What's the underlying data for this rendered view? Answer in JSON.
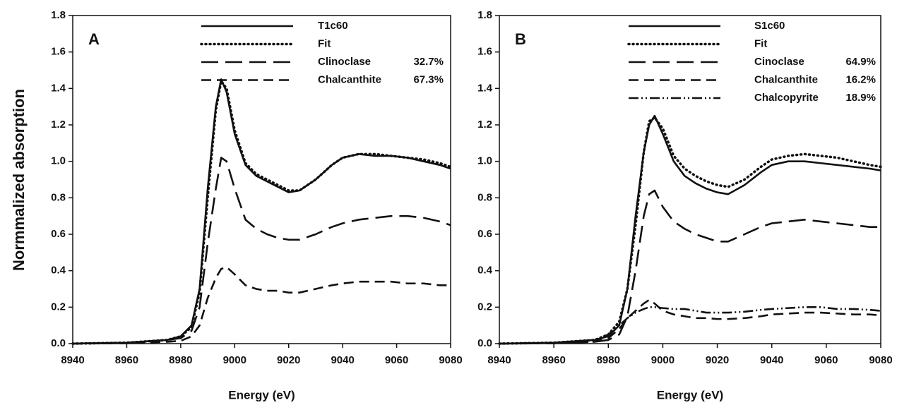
{
  "chart_data": [
    {
      "type": "line",
      "panel_label": "A",
      "xlabel": "Energy (eV)",
      "ylabel": "Normmalized absorption",
      "x": [
        8940,
        8960,
        8975,
        8980,
        8984,
        8987,
        8990,
        8993,
        8995,
        8997,
        9000,
        9004,
        9008,
        9012,
        9016,
        9020,
        9024,
        9030,
        9036,
        9040,
        9046,
        9052,
        9058,
        9064,
        9070,
        9076,
        9080
      ],
      "xlim": [
        8940,
        9080
      ],
      "xticks": [
        8940,
        8960,
        8980,
        9000,
        9020,
        9040,
        9060,
        9080
      ],
      "ylim": [
        0,
        1.8
      ],
      "yticks": [
        {
          "value": 0,
          "label": "0.0"
        },
        0.2,
        0.4,
        0.6,
        0.8,
        {
          "value": 1,
          "label": "1.0"
        },
        1.2,
        1.4,
        1.6,
        1.8
      ],
      "series": [
        {
          "name": "T1c60",
          "color": "#111111",
          "dash": "solid",
          "values": [
            0,
            0.005,
            0.02,
            0.04,
            0.1,
            0.3,
            0.85,
            1.3,
            1.45,
            1.38,
            1.15,
            0.98,
            0.92,
            0.89,
            0.86,
            0.83,
            0.84,
            0.9,
            0.98,
            1.02,
            1.04,
            1.03,
            1.03,
            1.02,
            1.0,
            0.98,
            0.96
          ]
        },
        {
          "name": "Fit",
          "color": "#111111",
          "dash": "dotted",
          "values": [
            0,
            0.005,
            0.02,
            0.04,
            0.09,
            0.28,
            0.8,
            1.28,
            1.44,
            1.4,
            1.17,
            0.99,
            0.93,
            0.9,
            0.87,
            0.84,
            0.84,
            0.9,
            0.98,
            1.02,
            1.04,
            1.04,
            1.03,
            1.02,
            1.01,
            0.99,
            0.97
          ]
        },
        {
          "name": "Clinoclase",
          "percent_label": "32.7%",
          "color": "#111111",
          "dash": "longdash",
          "values": [
            0,
            0.005,
            0.02,
            0.03,
            0.07,
            0.2,
            0.55,
            0.85,
            1.02,
            1.0,
            0.85,
            0.68,
            0.63,
            0.6,
            0.58,
            0.57,
            0.57,
            0.6,
            0.64,
            0.66,
            0.68,
            0.69,
            0.7,
            0.7,
            0.69,
            0.67,
            0.65
          ]
        },
        {
          "name": "Chalcanthite",
          "percent_label": "67.3%",
          "color": "#111111",
          "dash": "dash",
          "values": [
            0,
            0.002,
            0.01,
            0.015,
            0.04,
            0.1,
            0.25,
            0.36,
            0.41,
            0.42,
            0.38,
            0.32,
            0.3,
            0.29,
            0.29,
            0.28,
            0.28,
            0.3,
            0.32,
            0.33,
            0.34,
            0.34,
            0.34,
            0.33,
            0.33,
            0.32,
            0.32
          ]
        }
      ]
    },
    {
      "type": "line",
      "panel_label": "B",
      "xlabel": "Energy (eV)",
      "x": [
        8940,
        8960,
        8975,
        8980,
        8984,
        8987,
        8990,
        8993,
        8995,
        8997,
        9000,
        9004,
        9008,
        9012,
        9016,
        9020,
        9024,
        9030,
        9036,
        9040,
        9046,
        9052,
        9058,
        9064,
        9070,
        9076,
        9080
      ],
      "xlim": [
        8940,
        9080
      ],
      "xticks": [
        8940,
        8960,
        8980,
        9000,
        9020,
        9040,
        9060,
        9080
      ],
      "ylim": [
        0,
        1.8
      ],
      "yticks": [
        {
          "value": 0,
          "label": "0.0"
        },
        0.2,
        0.4,
        0.6,
        0.8,
        {
          "value": 1,
          "label": "1.0"
        },
        1.2,
        1.4,
        1.6,
        1.8
      ],
      "series": [
        {
          "name": "S1c60",
          "color": "#111111",
          "dash": "solid",
          "values": [
            0,
            0.005,
            0.02,
            0.04,
            0.1,
            0.3,
            0.7,
            1.05,
            1.2,
            1.25,
            1.15,
            1.0,
            0.92,
            0.88,
            0.85,
            0.83,
            0.82,
            0.87,
            0.94,
            0.98,
            1.0,
            1.0,
            0.99,
            0.98,
            0.97,
            0.96,
            0.95
          ]
        },
        {
          "name": "Fit",
          "color": "#111111",
          "dash": "dotted",
          "values": [
            0,
            0.005,
            0.02,
            0.05,
            0.12,
            0.3,
            0.65,
            1.05,
            1.22,
            1.24,
            1.18,
            1.03,
            0.96,
            0.92,
            0.89,
            0.87,
            0.86,
            0.9,
            0.97,
            1.01,
            1.03,
            1.04,
            1.03,
            1.02,
            1.0,
            0.98,
            0.97
          ]
        },
        {
          "name": "Cinoclase",
          "percent_label": "64.9%",
          "color": "#111111",
          "dash": "longdash",
          "values": [
            0,
            0.002,
            0.01,
            0.02,
            0.05,
            0.15,
            0.4,
            0.7,
            0.82,
            0.84,
            0.75,
            0.67,
            0.63,
            0.6,
            0.58,
            0.56,
            0.56,
            0.6,
            0.64,
            0.66,
            0.67,
            0.68,
            0.67,
            0.66,
            0.65,
            0.64,
            0.64
          ]
        },
        {
          "name": "Chalcanthite",
          "percent_label": "16.2%",
          "color": "#111111",
          "dash": "dash",
          "values": [
            0,
            0.002,
            0.01,
            0.03,
            0.08,
            0.14,
            0.18,
            0.22,
            0.24,
            0.22,
            0.18,
            0.16,
            0.15,
            0.14,
            0.14,
            0.135,
            0.135,
            0.14,
            0.15,
            0.16,
            0.165,
            0.17,
            0.17,
            0.165,
            0.16,
            0.16,
            0.155
          ]
        },
        {
          "name": "Chalcopyrite",
          "percent_label": "18.9%",
          "color": "#111111",
          "dash": "dashdotdot",
          "values": [
            0,
            0.005,
            0.02,
            0.05,
            0.1,
            0.14,
            0.17,
            0.19,
            0.2,
            0.2,
            0.195,
            0.19,
            0.19,
            0.18,
            0.17,
            0.17,
            0.17,
            0.175,
            0.185,
            0.19,
            0.195,
            0.2,
            0.2,
            0.19,
            0.19,
            0.185,
            0.18
          ]
        }
      ]
    }
  ]
}
